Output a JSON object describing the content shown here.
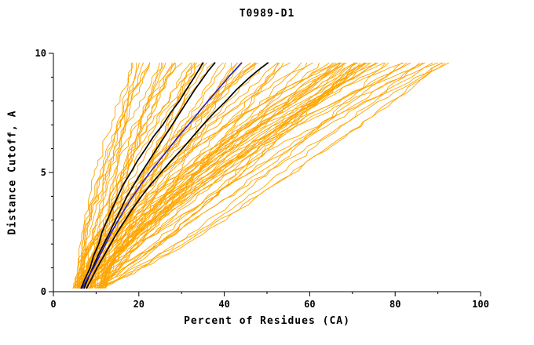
{
  "chart_data": {
    "type": "line",
    "title": "T0989-D1",
    "xlabel": "Percent of Residues (CA)",
    "ylabel": "Distance Cutoff, A",
    "xlim": [
      0,
      100
    ],
    "ylim": [
      0,
      10
    ],
    "x_ticks": [
      0,
      20,
      40,
      60,
      80,
      100
    ],
    "y_ticks": [
      0,
      5,
      10
    ],
    "x_minor_step": 10,
    "y_minor_step": 1,
    "grid": false,
    "legend": "none",
    "colors": {
      "ensemble": "#FFA500",
      "highlight": "#000000",
      "reference": "#1A1ACD",
      "axis": "#000000",
      "background": "#FFFFFF"
    },
    "highlight_series": [
      {
        "name": "model-black-1",
        "color": "#000000",
        "width": 1.7,
        "points": [
          [
            6.5,
            0.15
          ],
          [
            7.3,
            0.5
          ],
          [
            8.6,
            1.0
          ],
          [
            9.4,
            1.5
          ],
          [
            10.6,
            2.0
          ],
          [
            11.4,
            2.5
          ],
          [
            12.6,
            3.0
          ],
          [
            13.8,
            3.5
          ],
          [
            15.1,
            4.0
          ],
          [
            16.4,
            4.5
          ],
          [
            18.1,
            5.0
          ],
          [
            19.7,
            5.5
          ],
          [
            21.6,
            6.0
          ],
          [
            23.4,
            6.5
          ],
          [
            25.6,
            7.0
          ],
          [
            27.4,
            7.5
          ],
          [
            29.5,
            8.0
          ],
          [
            31.2,
            8.5
          ],
          [
            33.0,
            9.0
          ],
          [
            34.0,
            9.3
          ],
          [
            35.0,
            9.6
          ]
        ]
      },
      {
        "name": "model-black-2",
        "color": "#000000",
        "width": 1.7,
        "points": [
          [
            7.2,
            0.15
          ],
          [
            8.0,
            0.5
          ],
          [
            9.2,
            1.0
          ],
          [
            10.4,
            1.5
          ],
          [
            11.8,
            2.0
          ],
          [
            13.2,
            2.5
          ],
          [
            14.5,
            3.0
          ],
          [
            15.9,
            3.5
          ],
          [
            17.2,
            4.0
          ],
          [
            18.9,
            4.5
          ],
          [
            20.6,
            5.0
          ],
          [
            22.4,
            5.5
          ],
          [
            24.2,
            6.0
          ],
          [
            26.0,
            6.5
          ],
          [
            27.8,
            7.0
          ],
          [
            29.6,
            7.5
          ],
          [
            31.4,
            8.0
          ],
          [
            33.2,
            8.5
          ],
          [
            35.2,
            9.0
          ],
          [
            36.4,
            9.3
          ],
          [
            37.8,
            9.6
          ]
        ]
      },
      {
        "name": "model-black-3",
        "color": "#000000",
        "width": 1.7,
        "points": [
          [
            7.8,
            0.15
          ],
          [
            8.8,
            0.5
          ],
          [
            10.2,
            1.0
          ],
          [
            11.8,
            1.5
          ],
          [
            13.4,
            2.0
          ],
          [
            15.0,
            2.5
          ],
          [
            16.8,
            3.0
          ],
          [
            18.6,
            3.5
          ],
          [
            20.6,
            4.0
          ],
          [
            22.8,
            4.5
          ],
          [
            25.2,
            5.0
          ],
          [
            27.6,
            5.5
          ],
          [
            30.2,
            6.0
          ],
          [
            32.6,
            6.5
          ],
          [
            35.0,
            7.0
          ],
          [
            37.6,
            7.5
          ],
          [
            40.4,
            8.0
          ],
          [
            43.0,
            8.5
          ],
          [
            46.0,
            9.0
          ],
          [
            48.0,
            9.3
          ],
          [
            50.2,
            9.6
          ]
        ]
      },
      {
        "name": "model-blue",
        "color": "#1A1ACD",
        "width": 1.5,
        "points": [
          [
            6.8,
            0.15
          ],
          [
            7.8,
            0.5
          ],
          [
            9.4,
            1.0
          ],
          [
            10.8,
            1.5
          ],
          [
            12.2,
            2.0
          ],
          [
            13.6,
            2.5
          ],
          [
            15.2,
            3.0
          ],
          [
            16.8,
            3.5
          ],
          [
            18.6,
            4.0
          ],
          [
            20.5,
            4.5
          ],
          [
            22.6,
            5.0
          ],
          [
            24.8,
            5.5
          ],
          [
            27.0,
            6.0
          ],
          [
            29.2,
            6.5
          ],
          [
            31.6,
            7.0
          ],
          [
            33.9,
            7.5
          ],
          [
            36.2,
            8.0
          ],
          [
            38.6,
            8.5
          ],
          [
            41.0,
            9.0
          ],
          [
            42.5,
            9.3
          ],
          [
            44.0,
            9.6
          ]
        ]
      }
    ],
    "ensemble": {
      "name": "orange-model-curves",
      "color": "#FFA500",
      "count": 90,
      "seed": 1234,
      "width": 0.9,
      "y_start": 0.15,
      "y_end": 9.6,
      "x_start_range": [
        4.5,
        12.0
      ],
      "x_end_range": [
        17.0,
        93.0
      ],
      "end_bias_exponent": 1.25,
      "shape_exponent_range": [
        0.75,
        1.8
      ],
      "jitter": 1.3,
      "steps": 46
    },
    "axes_style": {
      "major_tick_len": 6,
      "minor_tick_len": 3
    }
  }
}
